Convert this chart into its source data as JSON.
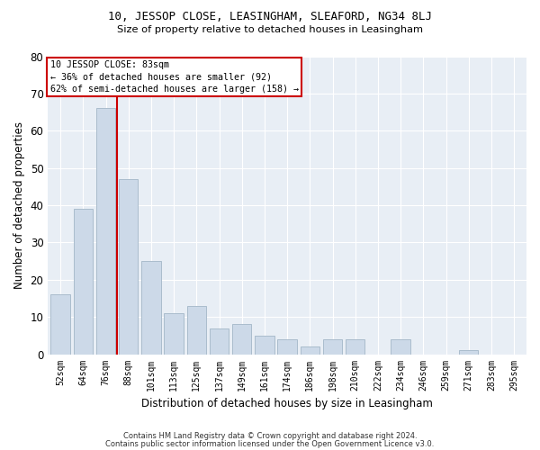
{
  "title1": "10, JESSOP CLOSE, LEASINGHAM, SLEAFORD, NG34 8LJ",
  "title2": "Size of property relative to detached houses in Leasingham",
  "xlabel": "Distribution of detached houses by size in Leasingham",
  "ylabel": "Number of detached properties",
  "bar_color": "#ccd9e8",
  "bar_edge_color": "#aabccc",
  "background_color": "#e8eef5",
  "grid_color": "#ffffff",
  "vline_color": "#cc0000",
  "annotation_lines": [
    "10 JESSOP CLOSE: 83sqm",
    "← 36% of detached houses are smaller (92)",
    "62% of semi-detached houses are larger (158) →"
  ],
  "categories": [
    "52sqm",
    "64sqm",
    "76sqm",
    "88sqm",
    "101sqm",
    "113sqm",
    "125sqm",
    "137sqm",
    "149sqm",
    "161sqm",
    "174sqm",
    "186sqm",
    "198sqm",
    "210sqm",
    "222sqm",
    "234sqm",
    "246sqm",
    "259sqm",
    "271sqm",
    "283sqm",
    "295sqm"
  ],
  "values": [
    16,
    39,
    66,
    47,
    25,
    11,
    13,
    7,
    8,
    5,
    4,
    2,
    4,
    4,
    0,
    4,
    0,
    0,
    1,
    0,
    0
  ],
  "n_bars": 21,
  "vline_bar_index": 2,
  "ylim": [
    0,
    80
  ],
  "yticks": [
    0,
    10,
    20,
    30,
    40,
    50,
    60,
    70,
    80
  ],
  "footnote1": "Contains HM Land Registry data © Crown copyright and database right 2024.",
  "footnote2": "Contains public sector information licensed under the Open Government Licence v3.0."
}
